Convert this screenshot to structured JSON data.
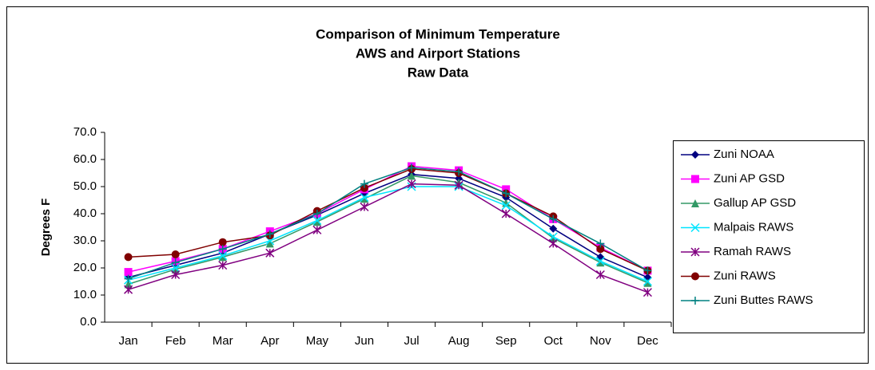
{
  "chart_data": {
    "type": "line",
    "title": [
      "Comparison of Minimum Temperature",
      "AWS and Airport Stations",
      "Raw Data"
    ],
    "ylabel": "Degrees F",
    "categories": [
      "Jan",
      "Feb",
      "Mar",
      "Apr",
      "May",
      "Jun",
      "Jul",
      "Aug",
      "Sep",
      "Oct",
      "Nov",
      "Dec"
    ],
    "ylim": [
      0,
      70
    ],
    "yticks": [
      {
        "value": 0,
        "label": "0.0"
      },
      {
        "value": 10,
        "label": "10.0"
      },
      {
        "value": 20,
        "label": "20.0"
      },
      {
        "value": 30,
        "label": "30.0"
      },
      {
        "value": 40,
        "label": "40.0"
      },
      {
        "value": 50,
        "label": "50.0"
      },
      {
        "value": 60,
        "label": "60.0"
      },
      {
        "value": 70,
        "label": "70.0"
      }
    ],
    "grid": false,
    "legend": "right",
    "series": [
      {
        "name": "Zuni NOAA",
        "color": "#000080",
        "marker": "diamond",
        "values": [
          16.5,
          21,
          25.5,
          32.5,
          39.5,
          47.5,
          54.5,
          53,
          46,
          34.5,
          24,
          16.5
        ]
      },
      {
        "name": "Zuni AP GSD",
        "color": "#ff00ff",
        "marker": "square",
        "values": [
          18.5,
          22.5,
          27,
          33.5,
          40,
          49,
          57.5,
          56,
          49,
          38,
          27.5,
          19
        ]
      },
      {
        "name": "Gallup AP GSD",
        "color": "#339966",
        "marker": "triangle",
        "values": [
          14,
          19.5,
          24,
          29,
          37,
          45.5,
          54,
          51.5,
          44,
          31,
          22,
          14.5
        ]
      },
      {
        "name": "Malpais RAWS",
        "color": "#00e5ff",
        "marker": "x",
        "values": [
          15.5,
          20,
          24.5,
          30,
          37.5,
          46,
          50,
          50,
          43,
          31.5,
          22.5,
          15
        ]
      },
      {
        "name": "Ramah RAWS",
        "color": "#800080",
        "marker": "star",
        "values": [
          12,
          17.5,
          21,
          25.5,
          34,
          42.5,
          51,
          50.5,
          40,
          29,
          17.5,
          11
        ]
      },
      {
        "name": "Zuni RAWS",
        "color": "#800000",
        "marker": "circle",
        "values": [
          24,
          25,
          29.5,
          32,
          41,
          49.5,
          56.5,
          55,
          47.5,
          39,
          27,
          19
        ]
      },
      {
        "name": "Zuni Buttes RAWS",
        "color": "#008080",
        "marker": "plus",
        "values": [
          16,
          22,
          27,
          32.5,
          40,
          51,
          57,
          55.5,
          47.5,
          38,
          29,
          19
        ]
      }
    ]
  }
}
